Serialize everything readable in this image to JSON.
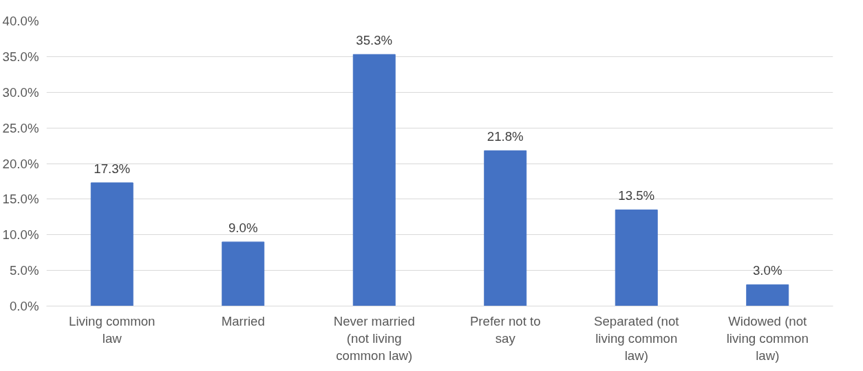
{
  "chart_data": {
    "type": "bar",
    "categories": [
      "Living common law",
      "Married",
      "Never married (not living common law)",
      "Prefer not to say",
      "Separated (not living common law)",
      "Widowed (not living common law)"
    ],
    "values": [
      17.3,
      9.0,
      35.3,
      21.8,
      13.5,
      3.0
    ],
    "value_labels": [
      "17.3%",
      "9.0%",
      "35.3%",
      "21.8%",
      "13.5%",
      "3.0%"
    ],
    "color": "#4472c4",
    "ylim": [
      0,
      40
    ],
    "yticks": [
      {
        "value": 0,
        "label": "0.0%"
      },
      {
        "value": 5,
        "label": "5.0%"
      },
      {
        "value": 10,
        "label": "10.0%"
      },
      {
        "value": 15,
        "label": "15.0%"
      },
      {
        "value": 20,
        "label": "20.0%"
      },
      {
        "value": 25,
        "label": "25.0%"
      },
      {
        "value": 30,
        "label": "30.0%"
      },
      {
        "value": 35,
        "label": "35.0%"
      },
      {
        "value": 40,
        "label": "40.0%"
      }
    ],
    "grid": "y"
  }
}
